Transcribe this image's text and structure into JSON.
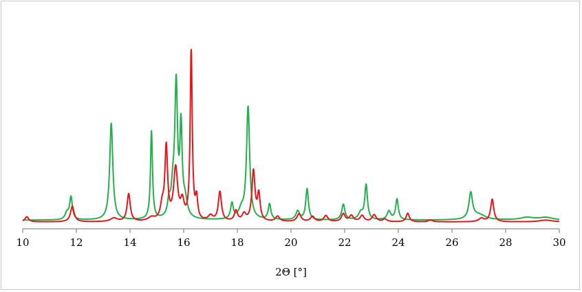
{
  "chart_data": {
    "type": "line",
    "title": "",
    "xlabel": "2Θ [°]",
    "ylabel": "",
    "xlim": [
      10,
      30
    ],
    "ylim": [
      0,
      1
    ],
    "xticks": [
      10,
      12,
      14,
      16,
      18,
      20,
      22,
      24,
      26,
      28,
      30
    ],
    "xtick_labels": [
      "10",
      "12",
      "14",
      "16",
      "18",
      "20",
      "22",
      "24",
      "26",
      "28",
      "30"
    ],
    "grid": false,
    "legend": "none",
    "series": [
      {
        "color": "#22b04a",
        "baseline": 0.01,
        "peaks": [
          [
            11.8,
            0.13,
            0.06
          ],
          [
            11.65,
            0.04,
            0.08
          ],
          [
            13.3,
            0.56,
            0.07
          ],
          [
            14.8,
            0.51,
            0.045
          ],
          [
            15.45,
            0.08,
            0.06
          ],
          [
            15.6,
            0.15,
            0.08
          ],
          [
            15.72,
            0.75,
            0.06
          ],
          [
            15.9,
            0.5,
            0.05
          ],
          [
            16.05,
            0.1,
            0.1
          ],
          [
            17.8,
            0.09,
            0.06
          ],
          [
            18.4,
            0.65,
            0.07
          ],
          [
            18.15,
            0.05,
            0.12
          ],
          [
            19.2,
            0.09,
            0.06
          ],
          [
            20.25,
            0.05,
            0.08
          ],
          [
            20.6,
            0.18,
            0.06
          ],
          [
            21.95,
            0.09,
            0.07
          ],
          [
            22.6,
            0.04,
            0.1
          ],
          [
            22.8,
            0.2,
            0.06
          ],
          [
            23.65,
            0.05,
            0.08
          ],
          [
            23.95,
            0.12,
            0.06
          ],
          [
            26.7,
            0.15,
            0.08
          ],
          [
            27.0,
            0.03,
            0.3
          ],
          [
            28.8,
            0.015,
            0.3
          ],
          [
            29.5,
            0.015,
            0.3
          ]
        ]
      },
      {
        "color": "#e8141a",
        "baseline": 0.0,
        "peaks": [
          [
            10.15,
            0.03,
            0.08
          ],
          [
            11.85,
            0.09,
            0.08
          ],
          [
            13.4,
            0.02,
            0.15
          ],
          [
            13.95,
            0.16,
            0.07
          ],
          [
            14.8,
            0.02,
            0.15
          ],
          [
            15.35,
            0.42,
            0.06
          ],
          [
            15.2,
            0.08,
            0.08
          ],
          [
            15.7,
            0.3,
            0.09
          ],
          [
            15.95,
            0.1,
            0.08
          ],
          [
            16.28,
            1.0,
            0.045
          ],
          [
            16.48,
            0.12,
            0.05
          ],
          [
            17.0,
            0.03,
            0.1
          ],
          [
            17.35,
            0.17,
            0.07
          ],
          [
            17.95,
            0.06,
            0.07
          ],
          [
            18.25,
            0.04,
            0.08
          ],
          [
            18.6,
            0.29,
            0.07
          ],
          [
            18.8,
            0.15,
            0.06
          ],
          [
            19.5,
            0.03,
            0.09
          ],
          [
            20.3,
            0.045,
            0.09
          ],
          [
            20.8,
            0.03,
            0.09
          ],
          [
            21.3,
            0.035,
            0.09
          ],
          [
            21.95,
            0.045,
            0.08
          ],
          [
            22.25,
            0.035,
            0.09
          ],
          [
            22.65,
            0.035,
            0.09
          ],
          [
            23.1,
            0.04,
            0.09
          ],
          [
            23.5,
            0.015,
            0.09
          ],
          [
            24.35,
            0.05,
            0.07
          ],
          [
            25.2,
            0.01,
            0.1
          ],
          [
            27.1,
            0.02,
            0.12
          ],
          [
            27.5,
            0.13,
            0.07
          ],
          [
            29.5,
            0.01,
            0.3
          ]
        ]
      }
    ]
  }
}
